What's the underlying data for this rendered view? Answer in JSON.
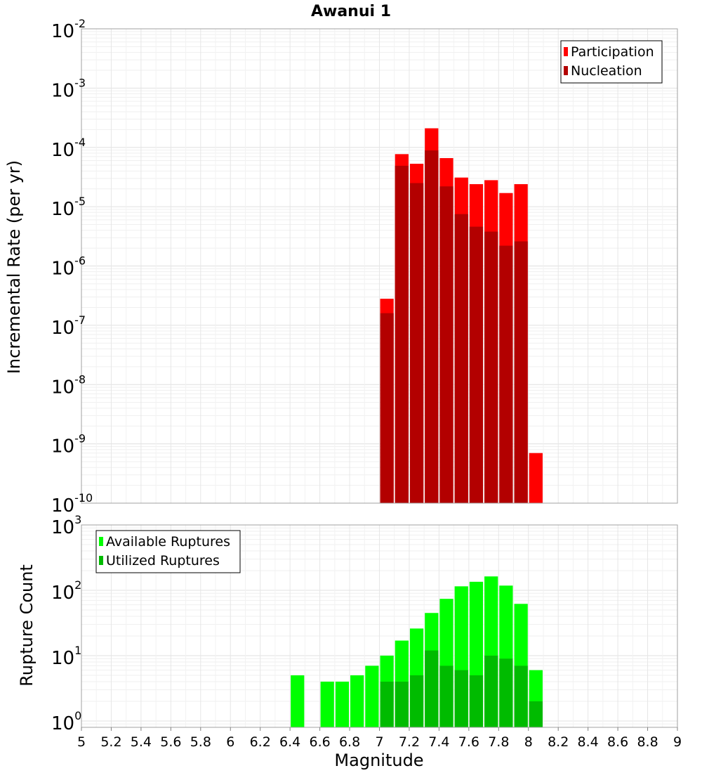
{
  "chart_data": [
    {
      "type": "bar",
      "title": "Awanui 1",
      "ylabel": "Incremental Rate (per yr)",
      "xlabel": "",
      "yscale": "log",
      "ylim": [
        1e-10,
        0.01
      ],
      "xlim": [
        5,
        9
      ],
      "bin_width": 0.1,
      "grid": true,
      "legend_position": "top-right",
      "y_tick_labels": [
        {
          "base": "10",
          "exp": "-10",
          "value": 1e-10
        },
        {
          "base": "10",
          "exp": "-9",
          "value": 1e-09
        },
        {
          "base": "10",
          "exp": "-8",
          "value": 1e-08
        },
        {
          "base": "10",
          "exp": "-7",
          "value": 1e-07
        },
        {
          "base": "10",
          "exp": "-6",
          "value": 1e-06
        },
        {
          "base": "10",
          "exp": "-5",
          "value": 1e-05
        },
        {
          "base": "10",
          "exp": "-4",
          "value": 0.0001
        },
        {
          "base": "10",
          "exp": "-3",
          "value": 0.001
        },
        {
          "base": "10",
          "exp": "-2",
          "value": 0.01
        }
      ],
      "x": [
        7.05,
        7.15,
        7.25,
        7.35,
        7.45,
        7.55,
        7.65,
        7.75,
        7.85,
        7.95,
        8.05
      ],
      "series": [
        {
          "name": "Participation",
          "color": "#ff0000",
          "values": [
            2.8e-07,
            7.7e-05,
            5.3e-05,
            0.00021,
            6.6e-05,
            3.1e-05,
            2.4e-05,
            2.8e-05,
            1.7e-05,
            2.4e-05,
            7e-10
          ]
        },
        {
          "name": "Nucleation",
          "color": "#b30000",
          "values": [
            1.6e-07,
            4.9e-05,
            2.5e-05,
            8.9e-05,
            2.2e-05,
            7.5e-06,
            4.6e-06,
            3.8e-06,
            2.2e-06,
            2.6e-06,
            null
          ]
        }
      ]
    },
    {
      "type": "bar",
      "title": "",
      "ylabel": "Rupture Count",
      "xlabel": "Magnitude",
      "yscale": "log",
      "ylim": [
        0.8,
        1000
      ],
      "xlim": [
        5,
        9
      ],
      "bin_width": 0.1,
      "grid": true,
      "legend_position": "top-left",
      "x_tick_labels": [
        "5",
        "5.2",
        "5.4",
        "5.6",
        "5.8",
        "6",
        "6.2",
        "6.4",
        "6.6",
        "6.8",
        "7",
        "7.2",
        "7.4",
        "7.6",
        "7.8",
        "8",
        "8.2",
        "8.4",
        "8.6",
        "8.8",
        "9"
      ],
      "y_tick_labels": [
        {
          "base": "10",
          "exp": "0",
          "value": 1
        },
        {
          "base": "10",
          "exp": "1",
          "value": 10
        },
        {
          "base": "10",
          "exp": "2",
          "value": 100
        },
        {
          "base": "10",
          "exp": "3",
          "value": 1000
        }
      ],
      "x": [
        6.45,
        6.65,
        6.75,
        6.85,
        6.95,
        7.05,
        7.15,
        7.25,
        7.35,
        7.45,
        7.55,
        7.65,
        7.75,
        7.85,
        7.95,
        8.05
      ],
      "series": [
        {
          "name": "Available Ruptures",
          "color": "#00ff00",
          "values": [
            5,
            4,
            4,
            5,
            7,
            10,
            17,
            26,
            45,
            74,
            115,
            135,
            163,
            118,
            62,
            6
          ]
        },
        {
          "name": "Utilized Ruptures",
          "color": "#00bb00",
          "values": [
            null,
            null,
            null,
            null,
            null,
            4,
            4,
            5,
            12,
            7,
            6,
            5,
            10,
            9,
            7,
            2
          ]
        }
      ]
    }
  ]
}
